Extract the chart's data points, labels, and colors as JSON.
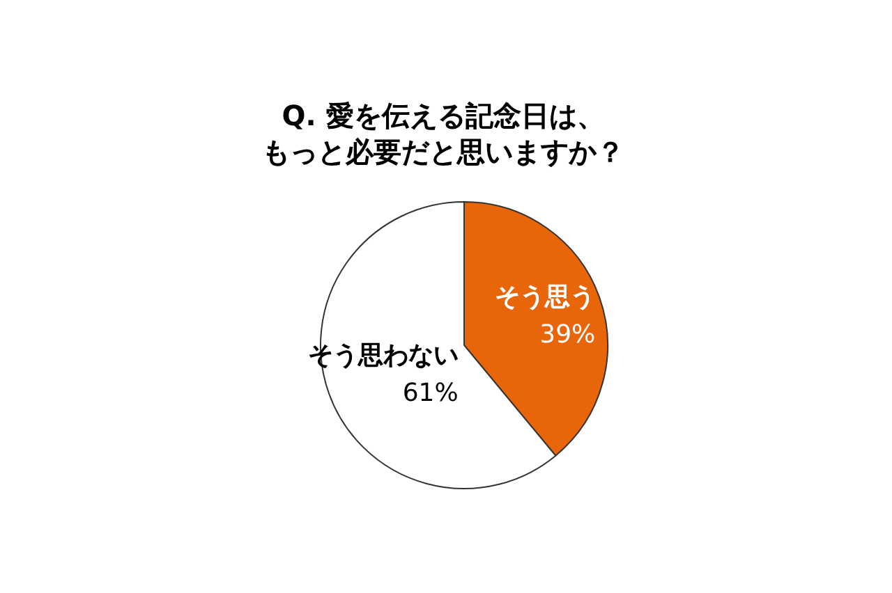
{
  "chart_data": {
    "type": "pie",
    "title": "Q. 愛を伝える記念日は、もっと必要だと思いますか？",
    "categories": [
      "そう思う",
      "そう思わない"
    ],
    "values": [
      39,
      61
    ],
    "value_labels": [
      "39%",
      "61%"
    ],
    "colors": [
      "#e8650a",
      "#ffffff"
    ]
  }
}
